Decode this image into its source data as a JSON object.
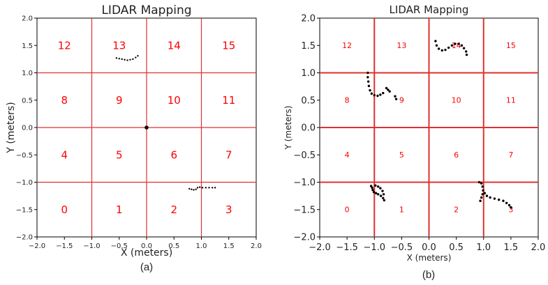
{
  "chart_data": [
    {
      "id": "a",
      "type": "scatter",
      "title": "LIDAR Mapping",
      "xlabel": "X (meters)",
      "ylabel": "Y (meters)",
      "xlim": [
        -2.0,
        2.0
      ],
      "ylim": [
        -2.0,
        2.0
      ],
      "xticks": [
        "−2.0",
        "−1.5",
        "−1.0",
        "−0.5",
        "0.0",
        "0.5",
        "1.0",
        "1.5",
        "2.0"
      ],
      "yticks": [
        "−2.0",
        "−1.5",
        "−1.0",
        "−0.5",
        "0.0",
        "0.5",
        "1.0",
        "1.5",
        "2.0"
      ],
      "grid_lines": [
        -1.0,
        0.0,
        1.0
      ],
      "grid_color": "#e03030",
      "label_color": "#ff0000",
      "point_color": "#000000",
      "cells": [
        {
          "label": "0",
          "x": -1.5,
          "y": -1.5
        },
        {
          "label": "1",
          "x": -0.5,
          "y": -1.5
        },
        {
          "label": "2",
          "x": 0.5,
          "y": -1.5
        },
        {
          "label": "3",
          "x": 1.5,
          "y": -1.5
        },
        {
          "label": "4",
          "x": -1.5,
          "y": -0.5
        },
        {
          "label": "5",
          "x": -0.5,
          "y": -0.5
        },
        {
          "label": "6",
          "x": 0.5,
          "y": -0.5
        },
        {
          "label": "7",
          "x": 1.5,
          "y": -0.5
        },
        {
          "label": "8",
          "x": -1.5,
          "y": 0.5
        },
        {
          "label": "9",
          "x": -0.5,
          "y": 0.5
        },
        {
          "label": "10",
          "x": 0.5,
          "y": 0.5
        },
        {
          "label": "11",
          "x": 1.5,
          "y": 0.5
        },
        {
          "label": "12",
          "x": -1.5,
          "y": 1.5
        },
        {
          "label": "13",
          "x": -0.5,
          "y": 1.5
        },
        {
          "label": "14",
          "x": 0.5,
          "y": 1.5
        },
        {
          "label": "15",
          "x": 1.5,
          "y": 1.5
        }
      ],
      "origin_marker": {
        "x": 0.0,
        "y": 0.0
      },
      "clusters": [
        [
          [
            -0.55,
            1.27
          ],
          [
            -0.5,
            1.26
          ],
          [
            -0.45,
            1.25
          ],
          [
            -0.4,
            1.24
          ],
          [
            -0.35,
            1.23
          ],
          [
            -0.3,
            1.24
          ],
          [
            -0.25,
            1.25
          ],
          [
            -0.2,
            1.28
          ],
          [
            -0.16,
            1.31
          ]
        ],
        [
          [
            0.78,
            -1.12
          ],
          [
            0.82,
            -1.13
          ],
          [
            0.86,
            -1.14
          ],
          [
            0.9,
            -1.13
          ],
          [
            0.93,
            -1.1
          ],
          [
            0.97,
            -1.09
          ],
          [
            1.02,
            -1.1
          ],
          [
            1.08,
            -1.1
          ],
          [
            1.14,
            -1.1
          ],
          [
            1.2,
            -1.1
          ],
          [
            1.25,
            -1.1
          ]
        ]
      ],
      "caption": "(a)"
    },
    {
      "id": "b",
      "type": "scatter",
      "title": "LIDAR Mapping",
      "xlabel": "X (meters)",
      "ylabel": "Y (meters)",
      "xlim": [
        -2.0,
        2.0
      ],
      "ylim": [
        -2.0,
        2.0
      ],
      "xticks": [
        "−2.0",
        "−1.5",
        "−1.0",
        "−0.5",
        "0.0",
        "0.5",
        "1.0",
        "1.5",
        "2.0"
      ],
      "yticks": [
        "−2.0",
        "−1.5",
        "−1.0",
        "−0.5",
        "0.0",
        "0.5",
        "1.0",
        "1.5",
        "2.0"
      ],
      "grid_lines": [
        -1.0,
        0.0,
        1.0
      ],
      "grid_color": "#e03030",
      "label_color": "#ff0000",
      "point_color": "#000000",
      "cells": [
        {
          "label": "0",
          "x": -1.5,
          "y": -1.5
        },
        {
          "label": "1",
          "x": -0.5,
          "y": -1.5
        },
        {
          "label": "2",
          "x": 0.5,
          "y": -1.5
        },
        {
          "label": "3",
          "x": 1.5,
          "y": -1.5
        },
        {
          "label": "4",
          "x": -1.5,
          "y": -0.5
        },
        {
          "label": "5",
          "x": -0.5,
          "y": -0.5
        },
        {
          "label": "6",
          "x": 0.5,
          "y": -0.5
        },
        {
          "label": "7",
          "x": 1.5,
          "y": -0.5
        },
        {
          "label": "8",
          "x": -1.5,
          "y": 0.5
        },
        {
          "label": "9",
          "x": -0.5,
          "y": 0.5
        },
        {
          "label": "10",
          "x": 0.5,
          "y": 0.5
        },
        {
          "label": "11",
          "x": 1.5,
          "y": 0.5
        },
        {
          "label": "12",
          "x": -1.5,
          "y": 1.5
        },
        {
          "label": "13",
          "x": -0.5,
          "y": 1.5
        },
        {
          "label": "14",
          "x": 0.5,
          "y": 1.5
        },
        {
          "label": "15",
          "x": 1.5,
          "y": 1.5
        }
      ],
      "clusters": [
        [
          [
            0.12,
            1.58
          ],
          [
            0.14,
            1.5
          ],
          [
            0.18,
            1.44
          ],
          [
            0.24,
            1.41
          ],
          [
            0.3,
            1.42
          ],
          [
            0.36,
            1.46
          ],
          [
            0.42,
            1.5
          ],
          [
            0.48,
            1.53
          ],
          [
            0.54,
            1.53
          ],
          [
            0.6,
            1.5
          ],
          [
            0.64,
            1.45
          ],
          [
            0.68,
            1.39
          ],
          [
            0.69,
            1.33
          ]
        ],
        [
          [
            -1.12,
            1.0
          ],
          [
            -1.12,
            0.92
          ],
          [
            -1.11,
            0.84
          ],
          [
            -1.1,
            0.76
          ],
          [
            -1.08,
            0.68
          ],
          [
            -1.05,
            0.62
          ],
          [
            -1.0,
            0.59
          ],
          [
            -0.94,
            0.58
          ],
          [
            -0.89,
            0.6
          ],
          [
            -0.84,
            0.63
          ]
        ],
        [
          [
            -0.78,
            0.72
          ],
          [
            -0.75,
            0.69
          ],
          [
            -0.72,
            0.66
          ]
        ],
        [
          [
            -0.62,
            0.57
          ],
          [
            -0.6,
            0.52
          ]
        ],
        [
          [
            -1.06,
            -1.07
          ],
          [
            -1.04,
            -1.1
          ],
          [
            -1.03,
            -1.14
          ],
          [
            -1.01,
            -1.18
          ],
          [
            -0.97,
            -1.2
          ],
          [
            -0.93,
            -1.22
          ],
          [
            -0.88,
            -1.25
          ],
          [
            -0.84,
            -1.29
          ],
          [
            -0.82,
            -1.33
          ],
          [
            -0.98,
            -1.06
          ],
          [
            -0.93,
            -1.08
          ],
          [
            -0.89,
            -1.11
          ],
          [
            -0.85,
            -1.16
          ],
          [
            -0.83,
            -1.22
          ]
        ],
        [
          [
            0.92,
            -1.0
          ],
          [
            0.96,
            -1.02
          ],
          [
            0.98,
            -1.08
          ],
          [
            0.99,
            -1.15
          ],
          [
            0.98,
            -1.22
          ],
          [
            0.96,
            -1.28
          ],
          [
            0.94,
            -1.34
          ],
          [
            1.02,
            -1.2
          ],
          [
            1.06,
            -1.25
          ],
          [
            1.12,
            -1.28
          ],
          [
            1.2,
            -1.3
          ],
          [
            1.28,
            -1.32
          ],
          [
            1.36,
            -1.34
          ],
          [
            1.42,
            -1.38
          ],
          [
            1.47,
            -1.42
          ],
          [
            1.5,
            -1.46
          ]
        ]
      ],
      "caption": "(b)"
    }
  ]
}
